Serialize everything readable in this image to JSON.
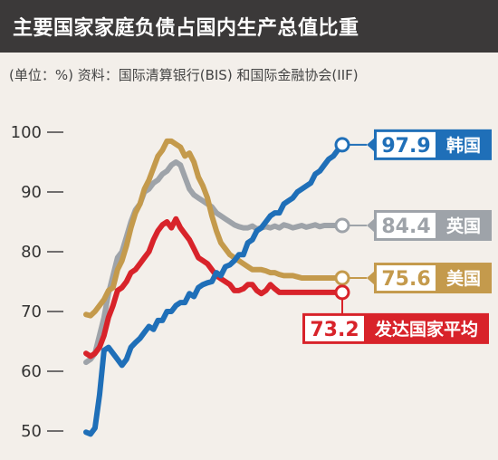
{
  "header": {
    "title": "主要国家家庭负债占国内生产总值比重",
    "subtitle": "(单位：%) 资料：国际清算银行(BIS) 和国际金融协会(IIF)"
  },
  "chart_data": {
    "type": "line",
    "title": "主要国家家庭负债占国内生产总值比重",
    "ylim": [
      50,
      100
    ],
    "yticks": [
      50,
      60,
      70,
      80,
      90,
      100
    ],
    "grid": false,
    "x": [
      0,
      1,
      2,
      3,
      4,
      5,
      6,
      7,
      8,
      9,
      10,
      11,
      12,
      13,
      14,
      15,
      16,
      17,
      18,
      19,
      20,
      21,
      22,
      23,
      24,
      25,
      26,
      27,
      28,
      29,
      30,
      31,
      32,
      33,
      34,
      35,
      36,
      37,
      38,
      39,
      40,
      41,
      42,
      43,
      44,
      45,
      46,
      47,
      48,
      49,
      50,
      51,
      52,
      53,
      54,
      55,
      56,
      57
    ],
    "series": [
      {
        "name": "韩国",
        "color": "#1f6fb8",
        "end_label": "97.9",
        "values": [
          49.8,
          49.5,
          50.5,
          56,
          63.5,
          64,
          63,
          62,
          61,
          62,
          64,
          64.8,
          65.5,
          66.5,
          67.5,
          67,
          68.5,
          68.5,
          70,
          70,
          71,
          71.5,
          71.5,
          73,
          72.5,
          74,
          74.5,
          74.8,
          75,
          76.5,
          76,
          77.5,
          77.8,
          78.5,
          79.5,
          79.5,
          81.5,
          82,
          83.5,
          84,
          85,
          86,
          86.5,
          86.5,
          88,
          88.5,
          89,
          90,
          90.5,
          91,
          91.5,
          93,
          93.5,
          94.5,
          95.5,
          96,
          97,
          97.9
        ]
      },
      {
        "name": "英国",
        "color": "#9ea3a9",
        "end_label": "84.4",
        "values": [
          61.5,
          62,
          63,
          66,
          69,
          73,
          76,
          79,
          80,
          82.5,
          85,
          87,
          88,
          90,
          90.5,
          91.5,
          92,
          93,
          93.5,
          94.5,
          95,
          94.5,
          92.5,
          90.5,
          89.5,
          89,
          88.5,
          88,
          87.5,
          86.5,
          86,
          85.5,
          85,
          84.5,
          84.2,
          84,
          84,
          84.3,
          83.8,
          84,
          84.2,
          84,
          84.3,
          84,
          84.5,
          84.3,
          84,
          84.2,
          84.4,
          84.1,
          84.3,
          84.5,
          84.2,
          84.4,
          84.4,
          84.4,
          84.4,
          84.4
        ]
      },
      {
        "name": "美国",
        "color": "#c49a4c",
        "end_label": "75.6",
        "values": [
          69.5,
          69.3,
          70,
          71,
          72,
          73.5,
          74,
          77,
          78.5,
          81,
          84,
          86.5,
          88,
          90.5,
          92,
          94,
          96,
          97,
          98.5,
          98.5,
          98,
          97.5,
          96,
          96.5,
          95,
          92.5,
          91,
          89,
          86,
          83.5,
          81.5,
          80.5,
          79.5,
          79,
          78.5,
          78,
          77.5,
          77,
          77,
          77,
          76.8,
          76.5,
          76.5,
          76.2,
          76,
          76,
          76,
          75.8,
          75.6,
          75.6,
          75.6,
          75.6,
          75.6,
          75.6,
          75.6,
          75.6,
          75.6,
          75.6
        ]
      },
      {
        "name": "发达国家平均",
        "color": "#d8232a",
        "end_label": "73.2",
        "values": [
          63,
          62.5,
          63,
          64,
          66,
          69,
          71,
          73.5,
          74,
          75,
          76.5,
          77,
          78,
          79,
          80,
          82,
          83.5,
          84.5,
          85,
          84,
          85.5,
          84,
          83,
          82,
          80.5,
          79,
          78.5,
          78,
          77,
          76,
          75.5,
          75,
          74.5,
          73.5,
          73.5,
          73.8,
          74.5,
          74.5,
          73.5,
          73,
          73.5,
          74.5,
          73.8,
          73.2,
          73.2,
          73.2,
          73.2,
          73.2,
          73.2,
          73.2,
          73.2,
          73.2,
          73.2,
          73.2,
          73.2,
          73.2,
          73.2,
          73.2
        ]
      }
    ]
  }
}
